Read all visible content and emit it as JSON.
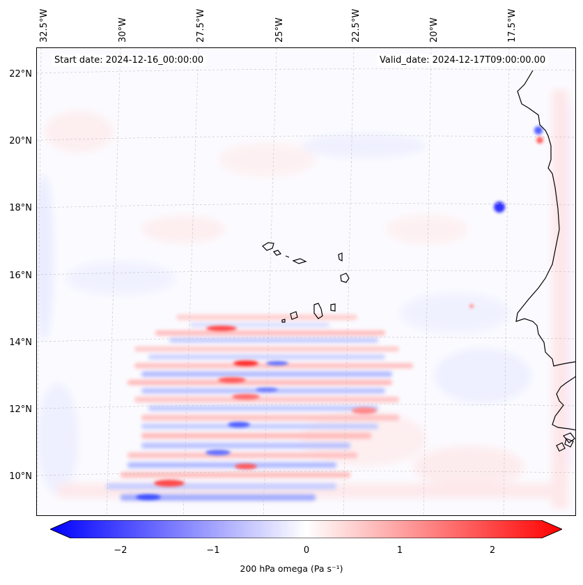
{
  "map": {
    "start_date": "Start date: 2024-12-16_00:00:00",
    "valid_date": "Valid_date: 2024-12-17T09:00:00.00",
    "lon_labels": [
      "32.5°W",
      "30°W",
      "27.5°W",
      "25°W",
      "22.5°W",
      "20°W",
      "17.5°W"
    ],
    "lat_labels": [
      "22°N",
      "20°N",
      "18°N",
      "16°N",
      "14°N",
      "12°N",
      "10°N"
    ],
    "variable": "200 hPa omega",
    "units": "Pa s⁻¹",
    "projection": "regional lat-lon",
    "gridlines": true,
    "coastline_color": "#000000"
  },
  "colorbar": {
    "label": "200 hPa omega (Pa s⁻¹)",
    "ticks": [
      "−2",
      "−1",
      "0",
      "1",
      "2"
    ],
    "tick_values": [
      -2,
      -1,
      0,
      1,
      2
    ],
    "range": [
      -2.6,
      2.6
    ],
    "colormap": "bwr",
    "color_min": "#0000ff",
    "color_mid": "#ffffff",
    "color_max": "#ff0000",
    "extend": "both"
  }
}
